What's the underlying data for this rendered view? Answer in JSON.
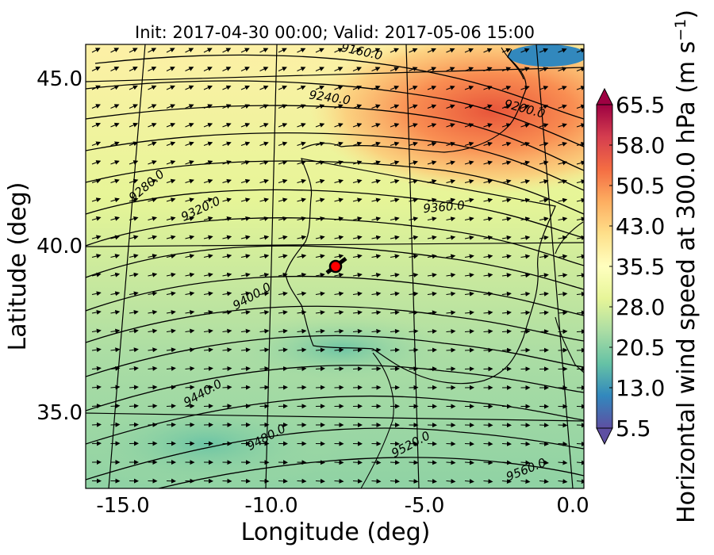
{
  "title": "Init: 2017-04-30 00:00; Valid: 2017-05-06 15:00",
  "xaxis": {
    "label": "Longitude (deg)",
    "ticks": [
      "-15.0",
      "-10.0",
      "-5.0",
      "0.0"
    ],
    "range": [
      -16.0,
      0.3
    ]
  },
  "yaxis": {
    "label": "Latitude (deg)",
    "ticks": [
      "45.0",
      "40.0",
      "35.0"
    ],
    "range": [
      32.5,
      46.0
    ]
  },
  "colorbar": {
    "label": "Horizontal wind speed at 300.0 hPa (m s",
    "label_superscript": "−1",
    "label_close": ")",
    "ticks": [
      "65.5",
      "58.0",
      "50.5",
      "43.0",
      "35.5",
      "28.0",
      "20.5",
      "13.0",
      "5.5"
    ],
    "min": 5.5,
    "max": 65.5,
    "colormap": "Spectral_r",
    "extend": "both"
  },
  "contours": {
    "quantity": "geopotential height",
    "levels": [
      "9160.0",
      "9200.0",
      "9240.0",
      "9280.0",
      "9320.0",
      "9360.0",
      "9400.0",
      "9440.0",
      "9480.0",
      "9520.0",
      "9560.0"
    ]
  },
  "marker": {
    "lon": -7.6,
    "lat": 39.3,
    "color": "#ff0000"
  },
  "colors": {
    "low_wind": "#5e4fa2",
    "mid_wind": "#abdda4",
    "high_wind": "#f46d43",
    "max_wind": "#9e0142",
    "marker": "#ff0000"
  }
}
